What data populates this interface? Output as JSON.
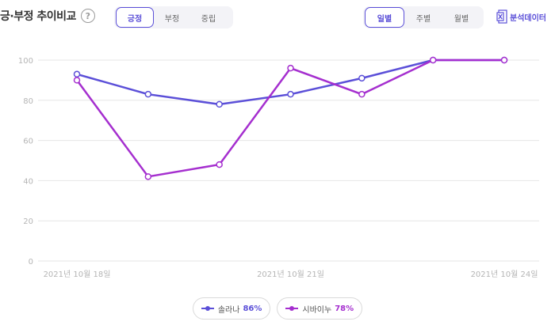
{
  "header": {
    "title": "긍·부정 추이비교",
    "help": "?"
  },
  "sentiment_tabs": [
    "긍정",
    "부정",
    "중립"
  ],
  "sentiment_active": 0,
  "period_tabs": [
    "일별",
    "주별",
    "월별"
  ],
  "period_active": 0,
  "analyze_label": "분석데이터",
  "colors": {
    "series1": "#5b4fd8",
    "series2": "#a52fcf",
    "accent": "#5b4fd8"
  },
  "legend": [
    {
      "name": "솔라나",
      "pct": "86%",
      "color": "#5b4fd8"
    },
    {
      "name": "시바이누",
      "pct": "78%",
      "color": "#a52fcf"
    }
  ],
  "chart_data": {
    "type": "line",
    "x": [
      "2021-10-18",
      "2021-10-19",
      "2021-10-20",
      "2021-10-21",
      "2021-10-22",
      "2021-10-23",
      "2021-10-24"
    ],
    "x_tick_labels": [
      "2021년 10월 18일",
      "2021년 10월 21일",
      "2021년 10월 24일"
    ],
    "y_ticks": [
      0,
      20,
      40,
      60,
      80,
      100
    ],
    "ylim": [
      0,
      100
    ],
    "grid": true,
    "series": [
      {
        "name": "솔라나",
        "values": [
          93,
          83,
          78,
          83,
          91,
          100,
          100
        ]
      },
      {
        "name": "시바이누",
        "values": [
          90,
          42,
          48,
          96,
          83,
          100,
          100
        ]
      }
    ]
  }
}
